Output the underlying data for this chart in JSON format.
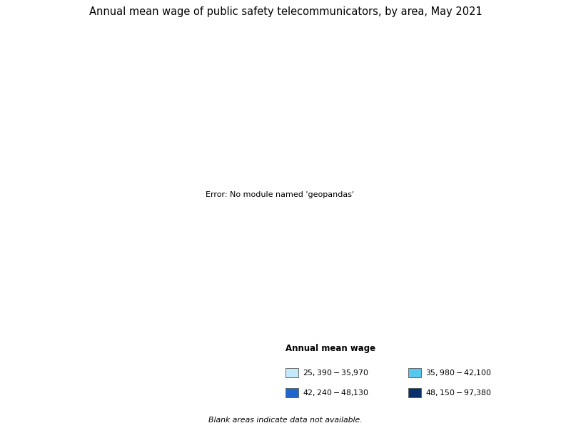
{
  "title": "Annual mean wage of public safety telecommunicators, by area, May 2021",
  "legend_title": "Annual mean wage",
  "legend_items": [
    {
      "label": "$25,390 - $35,970",
      "color": "#c6e8fb"
    },
    {
      "label": "$35,980 - $42,100",
      "color": "#56c8f0"
    },
    {
      "label": "$42,240 - $48,130",
      "color": "#2166cc"
    },
    {
      "label": "$48,150 - $97,380",
      "color": "#08306b"
    }
  ],
  "footnote": "Blank areas indicate data not available.",
  "background_color": "#ffffff",
  "color_bins": [
    25390,
    35970,
    42100,
    48130,
    97381
  ],
  "bin_colors": [
    "#c6e8fb",
    "#56c8f0",
    "#2166cc",
    "#08306b"
  ],
  "no_data_color": "#ffffff",
  "border_color": "#000000",
  "figsize": [
    8.0,
    6.0
  ],
  "dpi": 100,
  "main_xlim": [
    -127,
    -65
  ],
  "main_ylim": [
    23,
    50
  ],
  "ak_xlim": [
    -180,
    -129
  ],
  "ak_ylim": [
    51,
    72
  ],
  "hi_xlim": [
    -161,
    -154
  ],
  "hi_ylim": [
    18.5,
    22.5
  ]
}
